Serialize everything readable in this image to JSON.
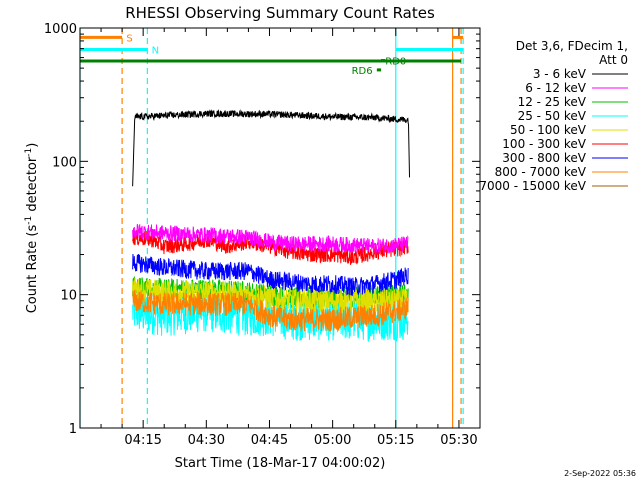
{
  "chart_data": {
    "type": "line",
    "title": "RHESSI Observing Summary Count Rates",
    "xlabel": "Start Time (18-Mar-17 04:00:02)",
    "ylabel": "Count Rate (s",
    "ylabel_sup1": "-1",
    "ylabel_mid": " detector",
    "ylabel_sup2": "-1",
    "ylabel_end": ")",
    "y_scale": "log",
    "ylim": [
      1,
      1000
    ],
    "xlim_minutes": [
      0,
      95
    ],
    "x_tick_minutes": [
      15,
      30,
      45,
      60,
      75,
      90
    ],
    "x_ticks": [
      "04:15",
      "04:30",
      "04:45",
      "05:00",
      "05:15",
      "05:30"
    ],
    "y_ticks": [
      {
        "value": 1,
        "label": "1"
      },
      {
        "value": 10,
        "label": "10"
      },
      {
        "value": 100,
        "label": "100"
      },
      {
        "value": 1000,
        "label": "1000"
      }
    ],
    "legend_position": "right",
    "legend_header": [
      "Det 3,6, FDecim 1,",
      "Att 0"
    ],
    "data_start_minute": 12.5,
    "data_end_minute": 78.5,
    "series": [
      {
        "name": "3 - 6 keV",
        "color": "#000000",
        "points": [
          [
            12.5,
            65
          ],
          [
            13,
            215
          ],
          [
            30,
            228
          ],
          [
            45,
            226
          ],
          [
            60,
            216
          ],
          [
            70,
            213
          ],
          [
            77,
            205
          ],
          [
            78,
            205
          ],
          [
            78.3,
            65
          ]
        ]
      },
      {
        "name": "6 - 12 keV",
        "color": "#ff00ff",
        "points": [
          [
            12.5,
            30
          ],
          [
            20,
            29
          ],
          [
            30,
            28
          ],
          [
            40,
            27
          ],
          [
            45,
            25
          ],
          [
            50,
            24
          ],
          [
            60,
            24
          ],
          [
            70,
            23
          ],
          [
            78,
            24
          ]
        ]
      },
      {
        "name": "12 - 25 keV",
        "color": "#00c000",
        "points": [
          [
            12.5,
            11.5
          ],
          [
            20,
            11
          ],
          [
            30,
            11
          ],
          [
            40,
            10.5
          ],
          [
            45,
            10
          ],
          [
            50,
            9.5
          ],
          [
            60,
            9.5
          ],
          [
            70,
            10
          ],
          [
            78,
            10
          ]
        ]
      },
      {
        "name": "25 - 50 keV",
        "color": "#00ffff",
        "points": [
          [
            12.5,
            7.5
          ],
          [
            20,
            7
          ],
          [
            30,
            7.5
          ],
          [
            40,
            7
          ],
          [
            45,
            7
          ],
          [
            50,
            6.5
          ],
          [
            60,
            6.5
          ],
          [
            70,
            6.5
          ],
          [
            78,
            6.5
          ]
        ]
      },
      {
        "name": "50 - 100 keV",
        "color": "#e0e000",
        "points": [
          [
            12.5,
            11
          ],
          [
            20,
            10.5
          ],
          [
            30,
            10.5
          ],
          [
            40,
            10
          ],
          [
            45,
            9.5
          ],
          [
            50,
            9
          ],
          [
            60,
            9
          ],
          [
            70,
            9
          ],
          [
            78,
            9
          ]
        ]
      },
      {
        "name": "100 - 300 keV",
        "color": "#ff0000",
        "points": [
          [
            12.5,
            27
          ],
          [
            17,
            26
          ],
          [
            20,
            23
          ],
          [
            25,
            24
          ],
          [
            30,
            26
          ],
          [
            35,
            23
          ],
          [
            40,
            25
          ],
          [
            45,
            23
          ],
          [
            50,
            21
          ],
          [
            55,
            20
          ],
          [
            60,
            20
          ],
          [
            65,
            19
          ],
          [
            70,
            21
          ],
          [
            75,
            22
          ],
          [
            78,
            23
          ]
        ]
      },
      {
        "name": "300 - 800 keV",
        "color": "#0000ff",
        "points": [
          [
            12.5,
            17.5
          ],
          [
            20,
            16
          ],
          [
            30,
            15
          ],
          [
            40,
            15
          ],
          [
            45,
            13
          ],
          [
            50,
            12.5
          ],
          [
            55,
            12
          ],
          [
            60,
            12
          ],
          [
            65,
            11.5
          ],
          [
            70,
            12
          ],
          [
            75,
            13
          ],
          [
            78,
            14
          ]
        ]
      },
      {
        "name": "800 - 7000 keV",
        "color": "#ff8000",
        "points": [
          [
            12.5,
            9
          ],
          [
            20,
            8.5
          ],
          [
            30,
            8.5
          ],
          [
            40,
            8.5
          ],
          [
            45,
            7
          ],
          [
            50,
            6.5
          ],
          [
            60,
            6.5
          ],
          [
            70,
            7
          ],
          [
            75,
            7.5
          ],
          [
            78,
            8
          ]
        ]
      },
      {
        "name": "7000 - 15000 keV",
        "color": "#a06000",
        "points": []
      }
    ],
    "segments": [
      {
        "label": "S",
        "color": "#ff8000",
        "start_minute": 0,
        "end_minute": 10,
        "value": 850,
        "label_minute": 11
      },
      {
        "label": "",
        "color": "#ff8000",
        "start_minute": 88.5,
        "end_minute": 91,
        "value": 850,
        "label_minute": null
      },
      {
        "label": "N",
        "color": "#00ffff",
        "start_minute": 0,
        "end_minute": 16,
        "value": 690,
        "label_minute": 17
      },
      {
        "label": "",
        "color": "#00ffff",
        "start_minute": 75,
        "end_minute": 91,
        "value": 690,
        "label_minute": null
      },
      {
        "label": "",
        "color": "#008000",
        "start_minute": 0,
        "end_minute": 90.5,
        "value": 565,
        "label_minute": null
      },
      {
        "label": "RD6",
        "color": "#008000",
        "start_minute": 70.5,
        "end_minute": 71.5,
        "value": 485,
        "label_minute": 64.5
      },
      {
        "label": "RD0",
        "color": "#008000",
        "start_minute": 71.5,
        "end_minute": 72.5,
        "value": 570,
        "label_minute": 72.5
      }
    ],
    "vlines": [
      {
        "color": "#00ffff",
        "minute": 0,
        "style": "solid"
      },
      {
        "color": "#ff8000",
        "minute": 10,
        "style": "dashed"
      },
      {
        "color": "#00ffff",
        "minute": 16,
        "style": "dashed"
      },
      {
        "color": "#00ffff",
        "minute": 75,
        "style": "solid"
      },
      {
        "color": "#ff8000",
        "minute": 88.5,
        "style": "solid"
      },
      {
        "color": "#ff8000",
        "minute": 90.5,
        "style": "dashed"
      },
      {
        "color": "#00ffff",
        "minute": 91,
        "style": "dashed"
      }
    ]
  },
  "footer": {
    "generated": "2-Sep-2022 05:36"
  }
}
